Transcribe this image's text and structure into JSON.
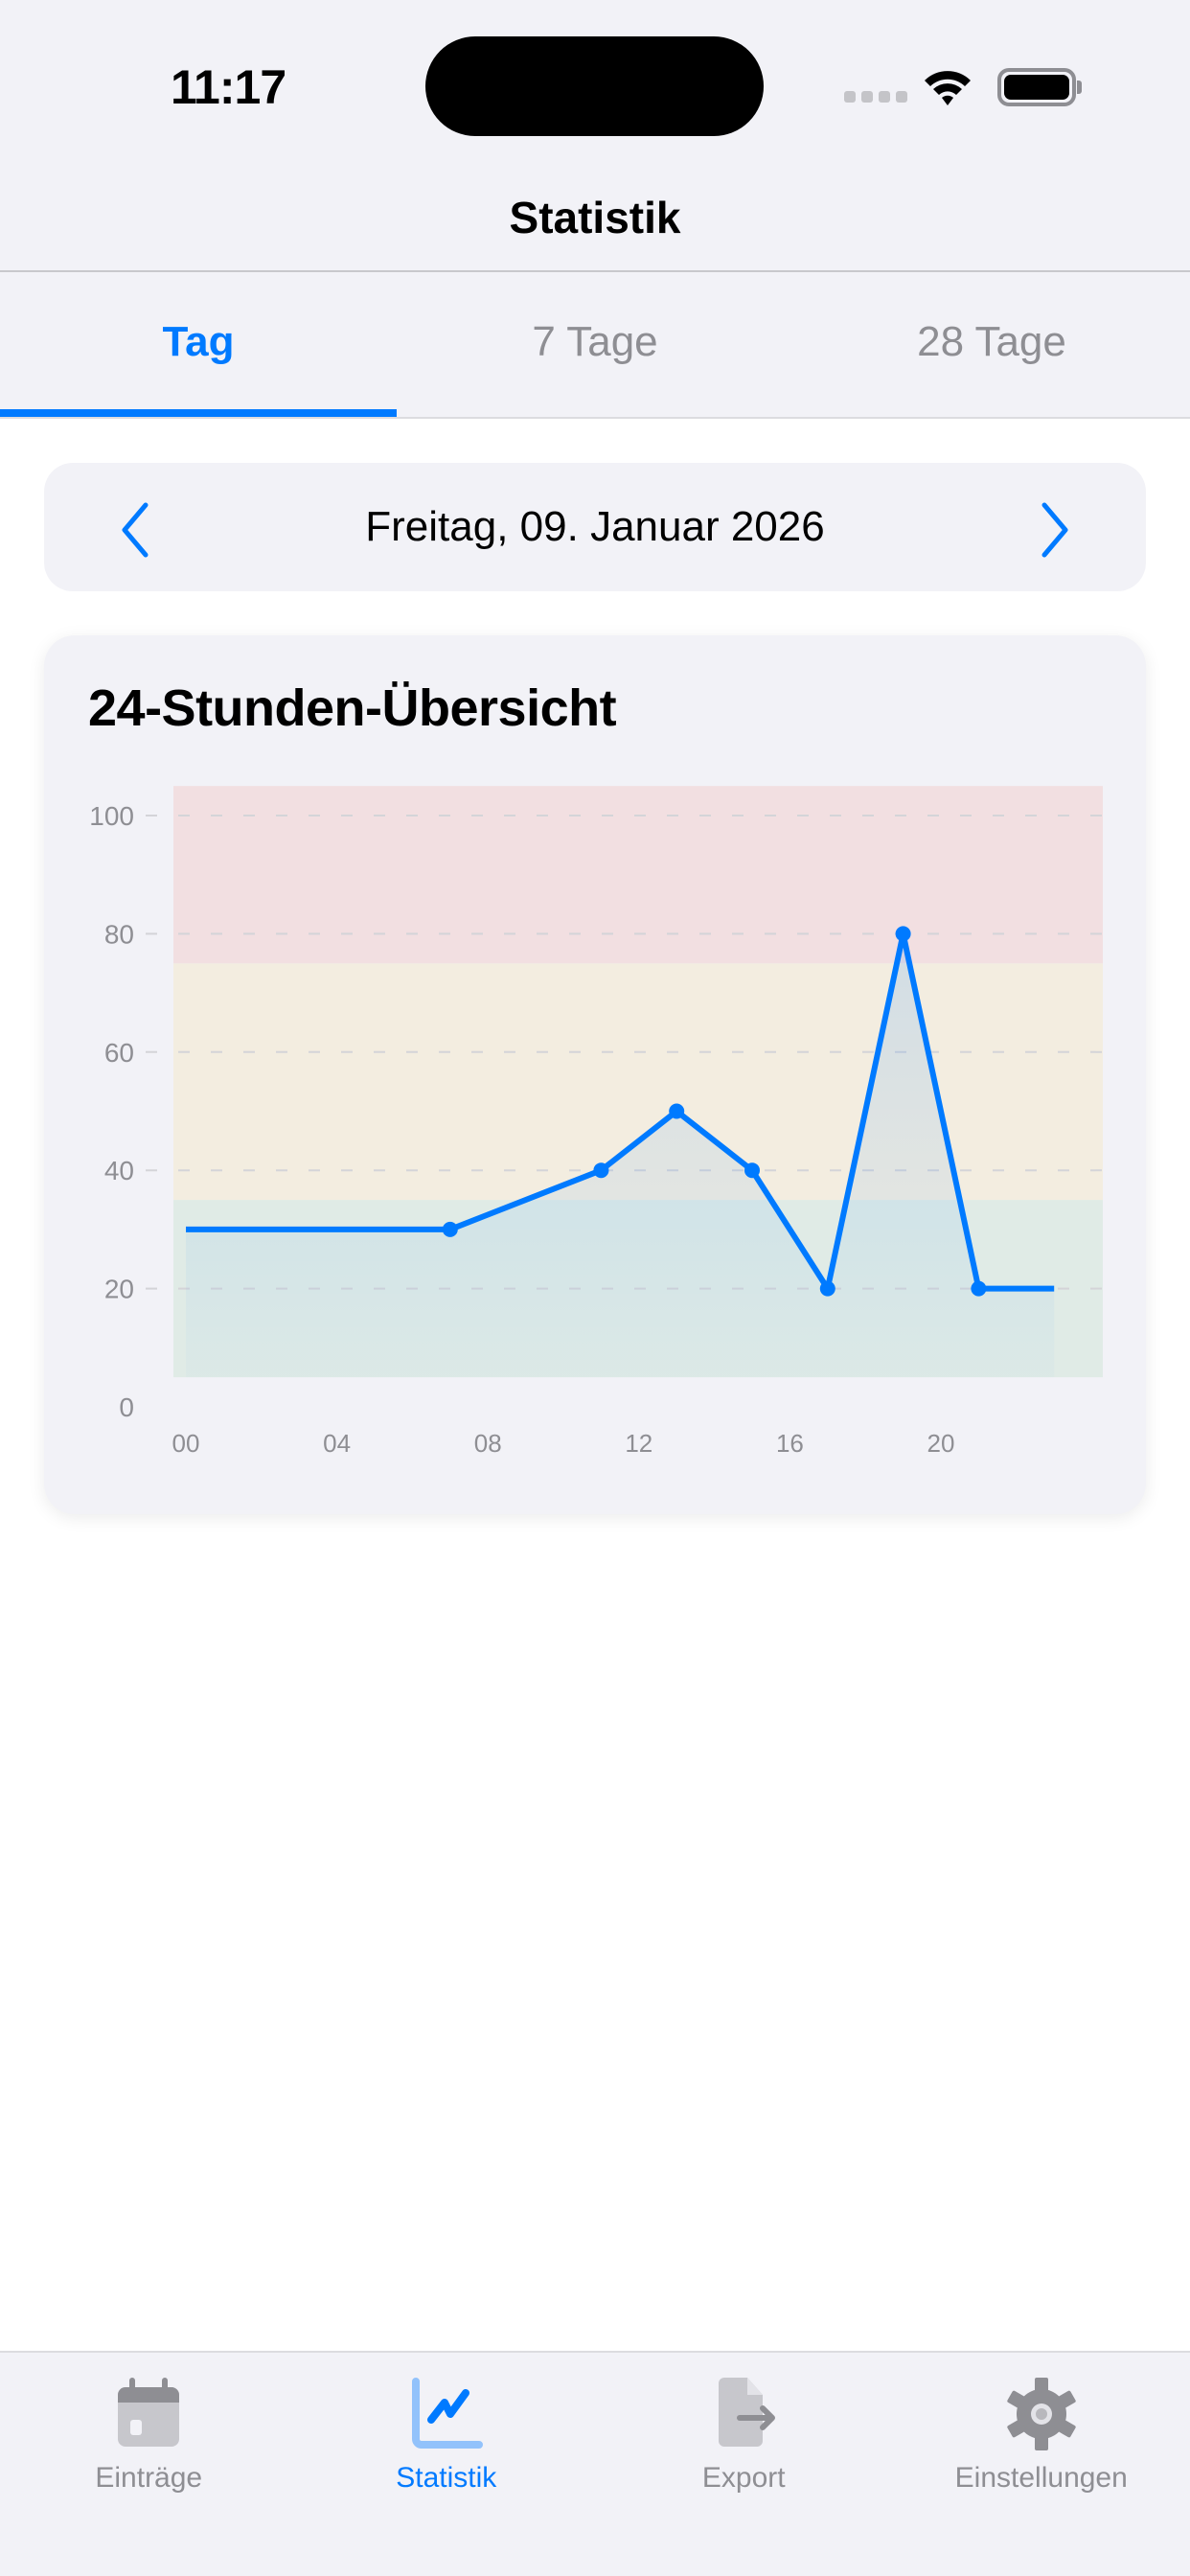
{
  "status_bar": {
    "time": "11:17",
    "icons": [
      "cellular-signal-icon",
      "wifi-icon",
      "battery-icon"
    ]
  },
  "nav": {
    "title": "Statistik"
  },
  "tabs": [
    {
      "label": "Tag",
      "active": true
    },
    {
      "label": "7 Tage",
      "active": false
    },
    {
      "label": "28 Tage",
      "active": false
    }
  ],
  "date_nav": {
    "date": "Freitag, 09. Januar 2026",
    "prev_icon": "chevron-left-icon",
    "next_icon": "chevron-right-icon"
  },
  "card": {
    "title": "24-Stunden-Übersicht"
  },
  "colors": {
    "accent": "#007aff",
    "band_high": "#f2dfe1",
    "band_mid": "#f3ede0",
    "band_low": "#e0ebe6",
    "grid": "#d4d4d8",
    "axis_label": "#8e8e93"
  },
  "chart_data": {
    "type": "line",
    "title": "24-Stunden-Übersicht",
    "xlabel": "",
    "ylabel": "",
    "x_ticks": [
      "00",
      "04",
      "08",
      "12",
      "16",
      "20"
    ],
    "y_ticks": [
      0,
      20,
      40,
      60,
      80,
      100
    ],
    "xlim": [
      0,
      24
    ],
    "ylim": [
      0,
      105
    ],
    "grid": "horizontal dashed",
    "legend": "none",
    "x": [
      0,
      7,
      11,
      13,
      15,
      17,
      19,
      21,
      23
    ],
    "values": [
      30,
      30,
      40,
      50,
      40,
      20,
      80,
      20,
      20
    ],
    "markers_at": [
      7,
      11,
      13,
      15,
      17,
      19,
      21
    ],
    "bands": [
      {
        "name": "low",
        "from": 5,
        "to": 35,
        "color": "#e0ebe6"
      },
      {
        "name": "mid",
        "from": 35,
        "to": 75,
        "color": "#f3ede0"
      },
      {
        "name": "high",
        "from": 75,
        "to": 105,
        "color": "#f2dfe1"
      }
    ]
  },
  "tabbar": {
    "items": [
      {
        "label": "Einträge",
        "icon": "calendar-icon",
        "active": false
      },
      {
        "label": "Statistik",
        "icon": "chart-icon",
        "active": true
      },
      {
        "label": "Export",
        "icon": "export-icon",
        "active": false
      },
      {
        "label": "Einstellungen",
        "icon": "gear-icon",
        "active": false
      }
    ]
  }
}
